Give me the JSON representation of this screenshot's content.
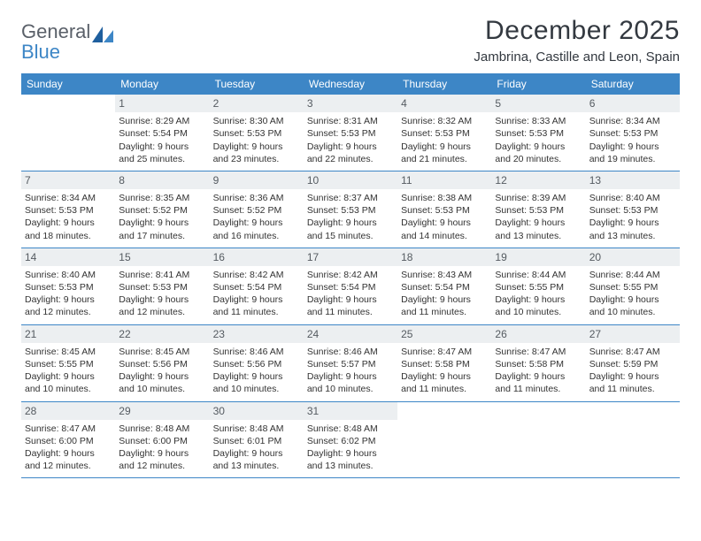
{
  "logo": {
    "word1": "General",
    "word2": "Blue"
  },
  "title": "December 2025",
  "location": "Jambrina, Castille and Leon, Spain",
  "dow": [
    "Sunday",
    "Monday",
    "Tuesday",
    "Wednesday",
    "Thursday",
    "Friday",
    "Saturday"
  ],
  "colors": {
    "accent": "#3d86c6",
    "dayBarBg": "#eceff1",
    "text": "#333333"
  },
  "weeks": [
    [
      {
        "blank": true
      },
      {
        "n": "1",
        "sr": "Sunrise: 8:29 AM",
        "ss": "Sunset: 5:54 PM",
        "d1": "Daylight: 9 hours",
        "d2": "and 25 minutes."
      },
      {
        "n": "2",
        "sr": "Sunrise: 8:30 AM",
        "ss": "Sunset: 5:53 PM",
        "d1": "Daylight: 9 hours",
        "d2": "and 23 minutes."
      },
      {
        "n": "3",
        "sr": "Sunrise: 8:31 AM",
        "ss": "Sunset: 5:53 PM",
        "d1": "Daylight: 9 hours",
        "d2": "and 22 minutes."
      },
      {
        "n": "4",
        "sr": "Sunrise: 8:32 AM",
        "ss": "Sunset: 5:53 PM",
        "d1": "Daylight: 9 hours",
        "d2": "and 21 minutes."
      },
      {
        "n": "5",
        "sr": "Sunrise: 8:33 AM",
        "ss": "Sunset: 5:53 PM",
        "d1": "Daylight: 9 hours",
        "d2": "and 20 minutes."
      },
      {
        "n": "6",
        "sr": "Sunrise: 8:34 AM",
        "ss": "Sunset: 5:53 PM",
        "d1": "Daylight: 9 hours",
        "d2": "and 19 minutes."
      }
    ],
    [
      {
        "n": "7",
        "sr": "Sunrise: 8:34 AM",
        "ss": "Sunset: 5:53 PM",
        "d1": "Daylight: 9 hours",
        "d2": "and 18 minutes."
      },
      {
        "n": "8",
        "sr": "Sunrise: 8:35 AM",
        "ss": "Sunset: 5:52 PM",
        "d1": "Daylight: 9 hours",
        "d2": "and 17 minutes."
      },
      {
        "n": "9",
        "sr": "Sunrise: 8:36 AM",
        "ss": "Sunset: 5:52 PM",
        "d1": "Daylight: 9 hours",
        "d2": "and 16 minutes."
      },
      {
        "n": "10",
        "sr": "Sunrise: 8:37 AM",
        "ss": "Sunset: 5:53 PM",
        "d1": "Daylight: 9 hours",
        "d2": "and 15 minutes."
      },
      {
        "n": "11",
        "sr": "Sunrise: 8:38 AM",
        "ss": "Sunset: 5:53 PM",
        "d1": "Daylight: 9 hours",
        "d2": "and 14 minutes."
      },
      {
        "n": "12",
        "sr": "Sunrise: 8:39 AM",
        "ss": "Sunset: 5:53 PM",
        "d1": "Daylight: 9 hours",
        "d2": "and 13 minutes."
      },
      {
        "n": "13",
        "sr": "Sunrise: 8:40 AM",
        "ss": "Sunset: 5:53 PM",
        "d1": "Daylight: 9 hours",
        "d2": "and 13 minutes."
      }
    ],
    [
      {
        "n": "14",
        "sr": "Sunrise: 8:40 AM",
        "ss": "Sunset: 5:53 PM",
        "d1": "Daylight: 9 hours",
        "d2": "and 12 minutes."
      },
      {
        "n": "15",
        "sr": "Sunrise: 8:41 AM",
        "ss": "Sunset: 5:53 PM",
        "d1": "Daylight: 9 hours",
        "d2": "and 12 minutes."
      },
      {
        "n": "16",
        "sr": "Sunrise: 8:42 AM",
        "ss": "Sunset: 5:54 PM",
        "d1": "Daylight: 9 hours",
        "d2": "and 11 minutes."
      },
      {
        "n": "17",
        "sr": "Sunrise: 8:42 AM",
        "ss": "Sunset: 5:54 PM",
        "d1": "Daylight: 9 hours",
        "d2": "and 11 minutes."
      },
      {
        "n": "18",
        "sr": "Sunrise: 8:43 AM",
        "ss": "Sunset: 5:54 PM",
        "d1": "Daylight: 9 hours",
        "d2": "and 11 minutes."
      },
      {
        "n": "19",
        "sr": "Sunrise: 8:44 AM",
        "ss": "Sunset: 5:55 PM",
        "d1": "Daylight: 9 hours",
        "d2": "and 10 minutes."
      },
      {
        "n": "20",
        "sr": "Sunrise: 8:44 AM",
        "ss": "Sunset: 5:55 PM",
        "d1": "Daylight: 9 hours",
        "d2": "and 10 minutes."
      }
    ],
    [
      {
        "n": "21",
        "sr": "Sunrise: 8:45 AM",
        "ss": "Sunset: 5:55 PM",
        "d1": "Daylight: 9 hours",
        "d2": "and 10 minutes."
      },
      {
        "n": "22",
        "sr": "Sunrise: 8:45 AM",
        "ss": "Sunset: 5:56 PM",
        "d1": "Daylight: 9 hours",
        "d2": "and 10 minutes."
      },
      {
        "n": "23",
        "sr": "Sunrise: 8:46 AM",
        "ss": "Sunset: 5:56 PM",
        "d1": "Daylight: 9 hours",
        "d2": "and 10 minutes."
      },
      {
        "n": "24",
        "sr": "Sunrise: 8:46 AM",
        "ss": "Sunset: 5:57 PM",
        "d1": "Daylight: 9 hours",
        "d2": "and 10 minutes."
      },
      {
        "n": "25",
        "sr": "Sunrise: 8:47 AM",
        "ss": "Sunset: 5:58 PM",
        "d1": "Daylight: 9 hours",
        "d2": "and 11 minutes."
      },
      {
        "n": "26",
        "sr": "Sunrise: 8:47 AM",
        "ss": "Sunset: 5:58 PM",
        "d1": "Daylight: 9 hours",
        "d2": "and 11 minutes."
      },
      {
        "n": "27",
        "sr": "Sunrise: 8:47 AM",
        "ss": "Sunset: 5:59 PM",
        "d1": "Daylight: 9 hours",
        "d2": "and 11 minutes."
      }
    ],
    [
      {
        "n": "28",
        "sr": "Sunrise: 8:47 AM",
        "ss": "Sunset: 6:00 PM",
        "d1": "Daylight: 9 hours",
        "d2": "and 12 minutes."
      },
      {
        "n": "29",
        "sr": "Sunrise: 8:48 AM",
        "ss": "Sunset: 6:00 PM",
        "d1": "Daylight: 9 hours",
        "d2": "and 12 minutes."
      },
      {
        "n": "30",
        "sr": "Sunrise: 8:48 AM",
        "ss": "Sunset: 6:01 PM",
        "d1": "Daylight: 9 hours",
        "d2": "and 13 minutes."
      },
      {
        "n": "31",
        "sr": "Sunrise: 8:48 AM",
        "ss": "Sunset: 6:02 PM",
        "d1": "Daylight: 9 hours",
        "d2": "and 13 minutes."
      },
      {
        "blank": true
      },
      {
        "blank": true
      },
      {
        "blank": true
      }
    ]
  ]
}
